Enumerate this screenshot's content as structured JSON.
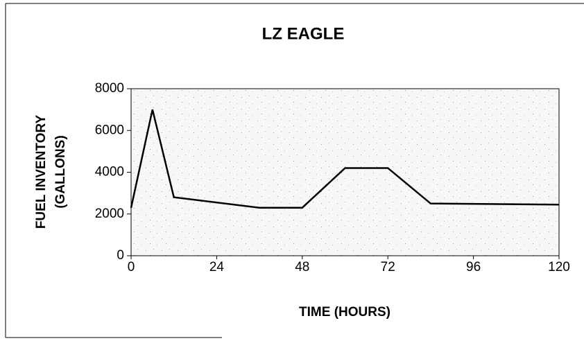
{
  "chart_data": {
    "type": "line",
    "title": "LZ EAGLE",
    "xlabel": "TIME (HOURS)",
    "ylabel": [
      "FUEL INVENTORY",
      "(GALLONS)"
    ],
    "x": [
      0,
      6,
      12,
      36,
      48,
      60,
      72,
      84,
      120
    ],
    "series": [
      {
        "color": "#000000",
        "values": [
          2300,
          7000,
          2800,
          2300,
          2300,
          4200,
          4200,
          2500,
          2450
        ]
      }
    ],
    "xlim": [
      0,
      120
    ],
    "xticks": [
      0,
      24,
      48,
      72,
      96,
      120
    ],
    "ylim": [
      0,
      8000
    ],
    "yticks": [
      0,
      2000,
      4000,
      6000,
      8000
    ]
  }
}
